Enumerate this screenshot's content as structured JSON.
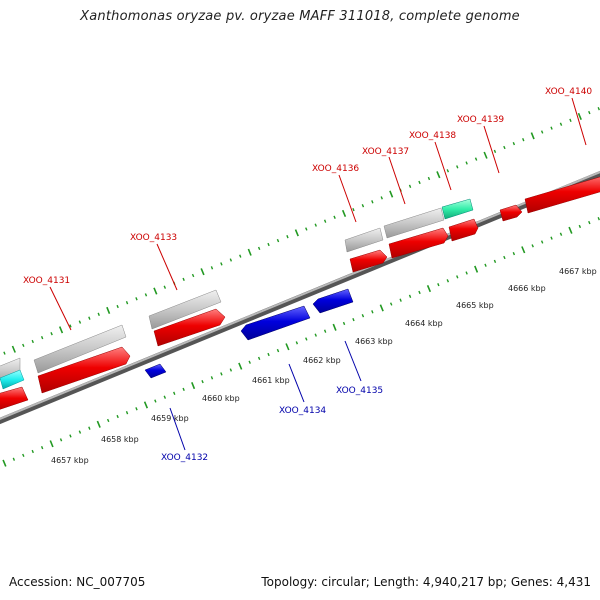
{
  "title": "Xanthomonas oryzae pv. oryzae MAFF 311018, complete genome",
  "footer": {
    "accession": "Accession: NC_007705",
    "summary": "Topology: circular; Length: 4,940,217 bp; Genes: 4,431"
  },
  "colors": {
    "forward_label": "#cc0000",
    "reverse_label": "#0000aa",
    "cds_forward": "#ee0000",
    "cds_reverse": "#0000dd",
    "feature_gray": "#c8c8c8",
    "feature_cyan": "#22eeee",
    "feature_green": "#33eeaa",
    "backbone": "#999999",
    "ticks": "#229922"
  },
  "scale": {
    "tick_labels": [
      "4657 kbp",
      "4658 kbp",
      "4659 kbp",
      "4660 kbp",
      "4661 kbp",
      "4662 kbp",
      "4663 kbp",
      "4664 kbp",
      "4665 kbp",
      "4666 kbp",
      "4667 kbp"
    ]
  },
  "genes": {
    "forward": [
      "XOO_4131",
      "XOO_4133",
      "XOO_4136",
      "XOO_4137",
      "XOO_4138",
      "XOO_4139",
      "XOO_4140"
    ],
    "reverse": [
      "XOO_4132",
      "XOO_4134",
      "XOO_4135"
    ]
  }
}
